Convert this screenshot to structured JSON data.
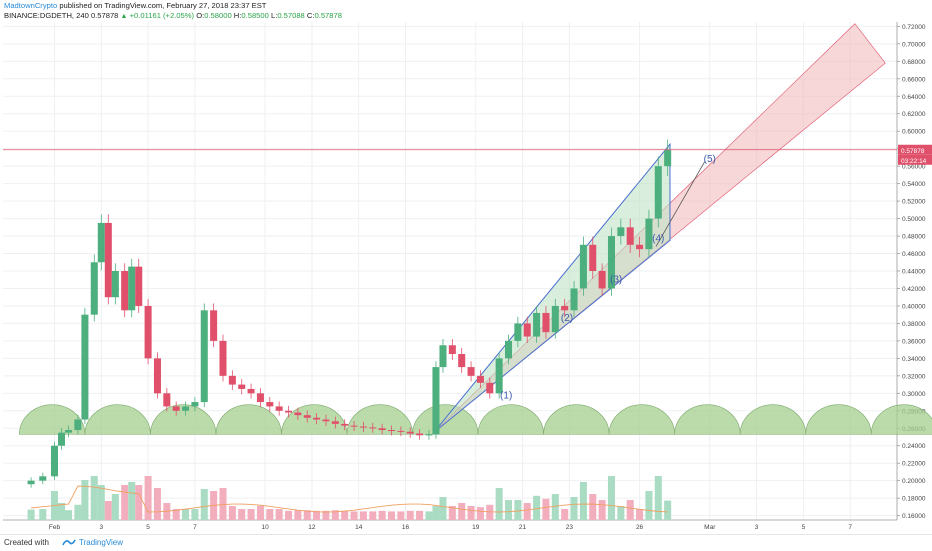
{
  "header": {
    "author": "MadtownCrypto",
    "published_text": "published on TradingView.com, February 27, 2018 23:37 EST",
    "symbol": "BINANCE:DGDETH, 240",
    "last": "0.57878",
    "up_mark": "▲",
    "change": "+0.01161 (+2.05%)",
    "o_label": "O:",
    "o_value": "0.58000",
    "h_label": "H:",
    "h_value": "0.58500",
    "l_label": "L:",
    "l_value": "0.57088",
    "c_label": "C:",
    "c_value": "0.57878"
  },
  "footer": {
    "created_with": "Created with",
    "brand": "TradingView"
  },
  "colors": {
    "up": "#4caf7d",
    "down": "#e0506a",
    "volume_up": "#a9dcc3",
    "volume_down": "#f3aebd",
    "ma_line": "#f0a060",
    "channel_fill": "#f3b6b8",
    "hump_fill": "#a6cf8f",
    "price_line": "#e0506a"
  },
  "chart_data": {
    "type": "candlestick",
    "ylim": [
      0.155,
      0.725
    ],
    "y_ticks": [
      "0.72000",
      "0.70000",
      "0.68000",
      "0.66000",
      "0.64000",
      "0.62000",
      "0.60000",
      "0.58000",
      "0.56000",
      "0.54000",
      "0.52000",
      "0.50000",
      "0.48000",
      "0.46000",
      "0.44000",
      "0.42000",
      "0.40000",
      "0.38000",
      "0.36000",
      "0.34000",
      "0.32000",
      "0.30000",
      "0.28000",
      "0.26000",
      "0.24000",
      "0.22000",
      "0.20000",
      "0.18000",
      "0.16000"
    ],
    "x_ticks": [
      {
        "label": "Feb",
        "day": 1
      },
      {
        "label": "3",
        "day": 3
      },
      {
        "label": "5",
        "day": 5
      },
      {
        "label": "7",
        "day": 7
      },
      {
        "label": "10",
        "day": 10
      },
      {
        "label": "12",
        "day": 12
      },
      {
        "label": "14",
        "day": 14
      },
      {
        "label": "16",
        "day": 16
      },
      {
        "label": "19",
        "day": 19
      },
      {
        "label": "21",
        "day": 21
      },
      {
        "label": "23",
        "day": 23
      },
      {
        "label": "26",
        "day": 26
      },
      {
        "label": "Mar",
        "day": 29
      },
      {
        "label": "3",
        "day": 31
      },
      {
        "label": "5",
        "day": 33
      },
      {
        "label": "7",
        "day": 35
      }
    ],
    "current_price": "0.57878",
    "countdown": "03:22:14",
    "close_series": [
      {
        "day": 0.0,
        "close": 0.2
      },
      {
        "day": 0.5,
        "close": 0.205
      },
      {
        "day": 1.0,
        "close": 0.24
      },
      {
        "day": 1.3,
        "close": 0.255
      },
      {
        "day": 1.6,
        "close": 0.258
      },
      {
        "day": 2.0,
        "close": 0.27
      },
      {
        "day": 2.3,
        "close": 0.39
      },
      {
        "day": 2.7,
        "close": 0.45
      },
      {
        "day": 3.0,
        "close": 0.495
      },
      {
        "day": 3.3,
        "close": 0.41
      },
      {
        "day": 3.6,
        "close": 0.44
      },
      {
        "day": 4.0,
        "close": 0.395
      },
      {
        "day": 4.3,
        "close": 0.445
      },
      {
        "day": 4.6,
        "close": 0.4
      },
      {
        "day": 5.0,
        "close": 0.34
      },
      {
        "day": 5.4,
        "close": 0.3
      },
      {
        "day": 5.8,
        "close": 0.285
      },
      {
        "day": 6.2,
        "close": 0.28
      },
      {
        "day": 6.6,
        "close": 0.285
      },
      {
        "day": 7.0,
        "close": 0.29
      },
      {
        "day": 7.4,
        "close": 0.395
      },
      {
        "day": 7.8,
        "close": 0.36
      },
      {
        "day": 8.2,
        "close": 0.32
      },
      {
        "day": 8.6,
        "close": 0.31
      },
      {
        "day": 9.0,
        "close": 0.305
      },
      {
        "day": 9.4,
        "close": 0.3
      },
      {
        "day": 9.8,
        "close": 0.29
      },
      {
        "day": 10.2,
        "close": 0.285
      },
      {
        "day": 10.6,
        "close": 0.28
      },
      {
        "day": 11.0,
        "close": 0.278
      },
      {
        "day": 11.4,
        "close": 0.275
      },
      {
        "day": 11.8,
        "close": 0.272
      },
      {
        "day": 12.2,
        "close": 0.27
      },
      {
        "day": 12.6,
        "close": 0.268
      },
      {
        "day": 13.0,
        "close": 0.265
      },
      {
        "day": 13.4,
        "close": 0.263
      },
      {
        "day": 13.8,
        "close": 0.262
      },
      {
        "day": 14.2,
        "close": 0.261
      },
      {
        "day": 14.6,
        "close": 0.26
      },
      {
        "day": 15.0,
        "close": 0.258
      },
      {
        "day": 15.4,
        "close": 0.257
      },
      {
        "day": 15.8,
        "close": 0.256
      },
      {
        "day": 16.2,
        "close": 0.254
      },
      {
        "day": 16.6,
        "close": 0.252
      },
      {
        "day": 17.0,
        "close": 0.253
      },
      {
        "day": 17.3,
        "close": 0.33
      },
      {
        "day": 17.6,
        "close": 0.355
      },
      {
        "day": 18.0,
        "close": 0.345
      },
      {
        "day": 18.4,
        "close": 0.33
      },
      {
        "day": 18.8,
        "close": 0.32
      },
      {
        "day": 19.2,
        "close": 0.312
      },
      {
        "day": 19.6,
        "close": 0.3
      },
      {
        "day": 20.0,
        "close": 0.34
      },
      {
        "day": 20.4,
        "close": 0.36
      },
      {
        "day": 20.8,
        "close": 0.38
      },
      {
        "day": 21.2,
        "close": 0.365
      },
      {
        "day": 21.6,
        "close": 0.392
      },
      {
        "day": 22.0,
        "close": 0.37
      },
      {
        "day": 22.4,
        "close": 0.4
      },
      {
        "day": 22.8,
        "close": 0.395
      },
      {
        "day": 23.2,
        "close": 0.42
      },
      {
        "day": 23.6,
        "close": 0.47
      },
      {
        "day": 24.0,
        "close": 0.44
      },
      {
        "day": 24.4,
        "close": 0.42
      },
      {
        "day": 24.8,
        "close": 0.48
      },
      {
        "day": 25.2,
        "close": 0.49
      },
      {
        "day": 25.6,
        "close": 0.47
      },
      {
        "day": 26.0,
        "close": 0.465
      },
      {
        "day": 26.4,
        "close": 0.5
      },
      {
        "day": 26.8,
        "close": 0.56
      },
      {
        "day": 27.2,
        "close": 0.579
      }
    ],
    "annotations": [
      {
        "label": "(1)",
        "day": 20.3,
        "price": 0.294
      },
      {
        "label": "(2)",
        "day": 22.9,
        "price": 0.383
      },
      {
        "label": "(3)",
        "day": 25.0,
        "price": 0.427
      },
      {
        "label": "(4)",
        "day": 26.8,
        "price": 0.474
      },
      {
        "label": "(5)",
        "day": 29.0,
        "price": 0.565
      }
    ],
    "channel": {
      "upper_start": {
        "day": 17.2,
        "price": 0.255
      },
      "upper_end": {
        "day": 35.2,
        "price": 0.723
      },
      "lower_start": {
        "day": 17.2,
        "price": 0.255
      },
      "lower_end": {
        "day": 36.5,
        "price": 0.678
      },
      "far_edge": [
        {
          "day": 35.2,
          "price": 0.723
        },
        {
          "day": 36.5,
          "price": 0.678
        }
      ]
    },
    "wedge": {
      "top_start": {
        "day": 17.2,
        "price": 0.255
      },
      "top_end": {
        "day": 27.3,
        "price": 0.585
      },
      "bottom_start": {
        "day": 17.2,
        "price": 0.255
      },
      "bottom_end": {
        "day": 27.3,
        "price": 0.475
      }
    },
    "hump_spacing_days": 2.8,
    "hump_baseline": 0.253,
    "hump_top": 0.287
  }
}
